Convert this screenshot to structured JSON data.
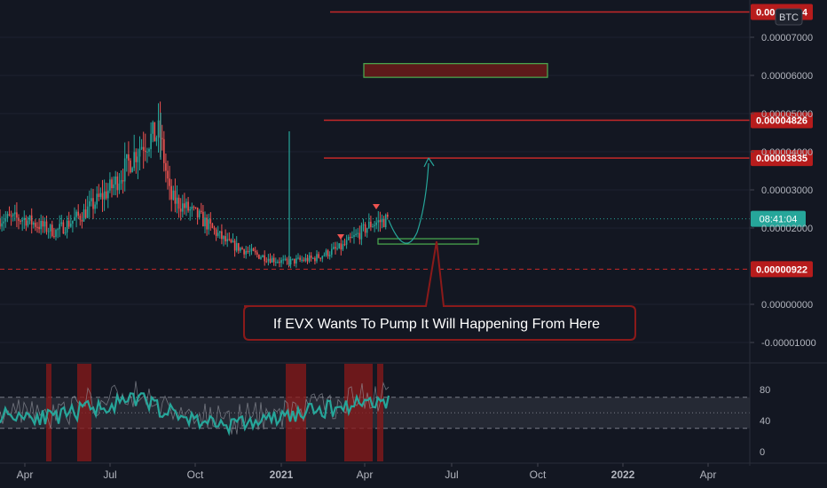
{
  "currency_badge": "BTC",
  "price_scale": {
    "ticks": [
      "0.00007000",
      "0.00006000",
      "0.00005000",
      "0.00004000",
      "0.00003000",
      "0.00002000",
      "0.00000000",
      "-0.00001000"
    ],
    "tick_values": [
      7e-05,
      6e-05,
      5e-05,
      4e-05,
      3e-05,
      2e-05,
      0.0,
      -1e-05
    ]
  },
  "level_labels": [
    {
      "text": "0.00007664",
      "value": 7.664e-05,
      "color": "#b71c1c"
    },
    {
      "text": "0.00004826",
      "value": 4.826e-05,
      "color": "#b71c1c"
    },
    {
      "text": "0.00003835",
      "value": 3.835e-05,
      "color": "#b71c1c"
    },
    {
      "text": "0.00000922",
      "value": 9.22e-06,
      "color": "#b71c1c"
    }
  ],
  "countdown_label": {
    "text": "08:41:04",
    "value": 2.24e-05,
    "color": "#26a69a"
  },
  "time_axis": {
    "labels": [
      "Apr",
      "Jul",
      "Oct",
      "2021",
      "Apr",
      "Jul",
      "Oct",
      "2022",
      "Apr"
    ],
    "bold": [
      false,
      false,
      false,
      true,
      false,
      false,
      false,
      true,
      false
    ]
  },
  "annotation": {
    "text": "If EVX Wants To Pump It Will Happening From Here"
  },
  "rsi_scale": {
    "ticks": [
      "80",
      "40",
      "0"
    ],
    "tick_values": [
      80,
      40,
      0
    ]
  },
  "colors": {
    "background": "#131722",
    "up": "#26a69a",
    "down": "#ef5350",
    "level_line": "#c62828",
    "box_border": "#4caf50",
    "box_fill": "#5d1a1a",
    "rsi_line": "#26a69a",
    "rsi_band": "#2a2e39"
  },
  "chart_data": [
    {
      "type": "candlestick",
      "pair": "EVX/BTC",
      "x": [
        "2020-04",
        "2020-05",
        "2020-06",
        "2020-07",
        "2020-08",
        "2020-08-20",
        "2020-09",
        "2020-10",
        "2020-11",
        "2020-12",
        "2021-01",
        "2021-02",
        "2021-03",
        "2021-04",
        "2021-04-20"
      ],
      "close": [
        2.2e-05,
        1.9e-05,
        2.4e-05,
        3.1e-05,
        4.2e-05,
        4.5e-05,
        2.8e-05,
        2.3e-05,
        1.6e-05,
        1.3e-05,
        1.1e-05,
        1.2e-05,
        1.5e-05,
        2.1e-05,
        2.24e-05
      ],
      "yrange": [
        -1.2e-05,
        7.8e-05
      ],
      "xrange": [
        "2020-03",
        "2022-05"
      ],
      "horizontal_levels": [
        7.664e-05,
        4.826e-05,
        3.835e-05,
        9.22e-06
      ],
      "zones": [
        {
          "label": "target box",
          "x": [
            "2021-04",
            "2021-10"
          ],
          "y": [
            5.95e-05,
            6.31e-05
          ]
        },
        {
          "label": "entry box",
          "x": [
            "2021-04",
            "2021-08"
          ],
          "y": [
            1.58e-05,
            1.72e-05
          ]
        }
      ],
      "projection": {
        "x": [
          "2021-04-20",
          "2021-05-15",
          "2021-06-10"
        ],
        "y": [
          2.24e-05,
          1.58e-05,
          3.85e-05
        ]
      }
    },
    {
      "type": "line",
      "name": "RSI",
      "x": [
        "2020-04",
        "2020-05",
        "2020-06",
        "2020-07",
        "2020-08",
        "2020-09",
        "2020-10",
        "2020-11",
        "2020-12",
        "2021-01",
        "2021-02",
        "2021-03",
        "2021-04",
        "2021-04-20"
      ],
      "values": [
        48,
        42,
        55,
        60,
        68,
        50,
        40,
        35,
        38,
        45,
        52,
        58,
        66,
        64
      ],
      "ylim": [
        0,
        100
      ],
      "band": [
        30,
        70
      ]
    }
  ]
}
